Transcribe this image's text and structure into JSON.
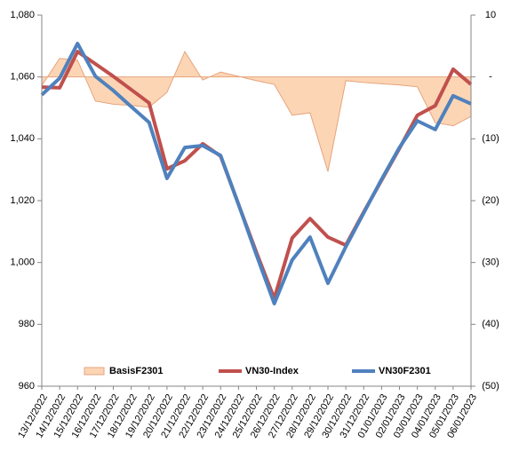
{
  "chart_data": {
    "type": "line",
    "categories": [
      "13/12/2022",
      "14/12/2022",
      "15/12/2022",
      "16/12/2022",
      "17/12/2022",
      "18/12/2022",
      "19/12/2022",
      "20/12/2022",
      "21/12/2022",
      "22/12/2022",
      "23/12/2022",
      "24/12/2022",
      "25/12/2022",
      "26/12/2022",
      "27/12/2022",
      "28/12/2022",
      "29/12/2022",
      "30/12/2022",
      "31/12/2022",
      "01/01/2023",
      "02/01/2023",
      "03/01/2023",
      "04/01/2023",
      "05/01/2023",
      "06/01/2023"
    ],
    "series": [
      {
        "name": "BasisF2301",
        "type": "area",
        "axis": "y2",
        "color": "#fcd5b5",
        "edge_color": "#e6a47c",
        "values": [
          -1.4,
          3,
          2.7,
          -3.9,
          -4.4,
          -4.6,
          -4.9,
          -2.5,
          4.1,
          -0.5,
          0.8,
          0.1,
          -0.6,
          -1.2,
          -6.2,
          -5.8,
          -15.3,
          -0.6,
          -0.9,
          -1.1,
          -1.3,
          -1.6,
          -7.4,
          -7.9,
          -6.4
        ]
      },
      {
        "name": "VN30-Index",
        "type": "line",
        "color": "#c0504d",
        "values": [
          1056.7,
          1056.5,
          1068.2,
          1064.2,
          1060.2,
          1055.9,
          1051.6,
          1030.3,
          1032.9,
          1038.4,
          1034.4,
          1018.8,
          1003.3,
          988.4,
          1007.9,
          1014.2,
          1008.2,
          1005.6,
          1016.3,
          1026.6,
          1036.9,
          1047.6,
          1050.7,
          1062.5,
          1057.6
        ]
      },
      {
        "name": "VN30F2301",
        "type": "line",
        "color": "#4f81bd",
        "values": [
          1054.2,
          1059.6,
          1070.8,
          1060.2,
          1055.6,
          1050.4,
          1045.3,
          1027.2,
          1037.2,
          1037.8,
          1034.6,
          1018.8,
          1002.5,
          986.7,
          1000.8,
          1008.2,
          993.3,
          1005.1,
          1016.0,
          1026.9,
          1037.2,
          1045.8,
          1043.0,
          1053.9,
          1051.3
        ]
      }
    ],
    "ylim": [
      960,
      1080
    ],
    "yticks": [
      {
        "value": 960,
        "label": "960"
      },
      {
        "value": 980,
        "label": "980"
      },
      {
        "value": 1000,
        "label": "1,000"
      },
      {
        "value": 1020,
        "label": "1,020"
      },
      {
        "value": 1040,
        "label": "1,040"
      },
      {
        "value": 1060,
        "label": "1,060"
      },
      {
        "value": 1080,
        "label": "1,080"
      }
    ],
    "y2lim": [
      -50,
      10
    ],
    "y2ticks": [
      {
        "value": -50,
        "label": "(50)"
      },
      {
        "value": -40,
        "label": "(40)"
      },
      {
        "value": -30,
        "label": "(30)"
      },
      {
        "value": -20,
        "label": "(20)"
      },
      {
        "value": -10,
        "label": "(10)"
      },
      {
        "value": 0,
        "label": "-"
      },
      10
    ],
    "grid": false,
    "legend": "bottom"
  }
}
